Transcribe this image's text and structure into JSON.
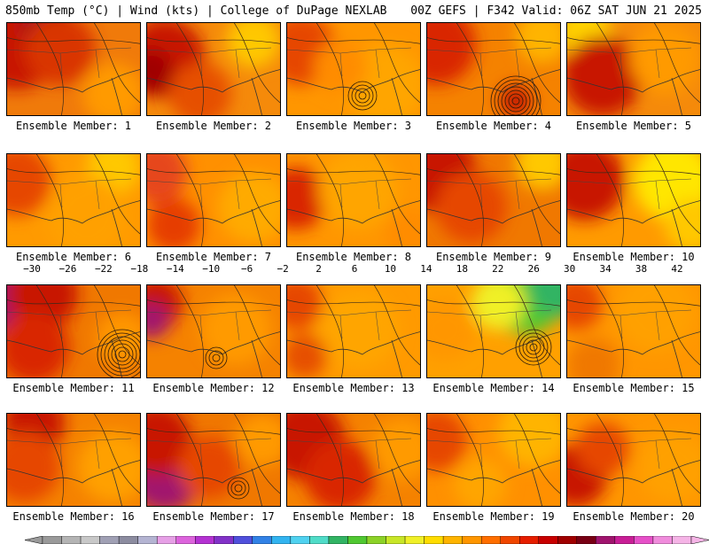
{
  "header": {
    "left": "850mb Temp (°C) | Wind (kts) | College of DuPage NEXLAB",
    "right": "00Z GEFS | F342 Valid: 06Z SAT JUN 21 2025"
  },
  "panels": [
    {
      "label": "Ensemble Member: 1",
      "cyclone": null
    },
    {
      "label": "Ensemble Member: 2",
      "cyclone": null
    },
    {
      "label": "Ensemble Member: 3",
      "cyclone": {
        "rings": 4
      }
    },
    {
      "label": "Ensemble Member: 4",
      "cyclone": {
        "rings": 7
      }
    },
    {
      "label": "Ensemble Member: 5",
      "cyclone": null
    },
    {
      "label": "Ensemble Member: 6",
      "cyclone": null
    },
    {
      "label": "Ensemble Member: 7",
      "cyclone": null
    },
    {
      "label": "Ensemble Member: 8",
      "cyclone": null
    },
    {
      "label": "Ensemble Member: 9",
      "cyclone": null
    },
    {
      "label": "Ensemble Member: 10",
      "cyclone": null
    },
    {
      "label": "Ensemble Member: 11",
      "cyclone": {
        "rings": 7
      }
    },
    {
      "label": "Ensemble Member: 12",
      "cyclone": {
        "rings": 3
      }
    },
    {
      "label": "Ensemble Member: 13",
      "cyclone": null
    },
    {
      "label": "Ensemble Member: 14",
      "cyclone": {
        "rings": 5
      }
    },
    {
      "label": "Ensemble Member: 15",
      "cyclone": null
    },
    {
      "label": "Ensemble Member: 16",
      "cyclone": null
    },
    {
      "label": "Ensemble Member: 17",
      "cyclone": {
        "rings": 3
      }
    },
    {
      "label": "Ensemble Member: 18",
      "cyclone": null
    },
    {
      "label": "Ensemble Member: 19",
      "cyclone": null
    },
    {
      "label": "Ensemble Member: 20",
      "cyclone": null
    }
  ],
  "scale": {
    "ticks": [
      "−30",
      "−26",
      "−22",
      "−18",
      "−14",
      "−10",
      "−6",
      "−2",
      "2",
      "6",
      "10",
      "14",
      "18",
      "22",
      "26",
      "30",
      "34",
      "38",
      "42"
    ],
    "colors": [
      "#9a9a9a",
      "#b4b4b4",
      "#c8c8c8",
      "#a0a0b4",
      "#8c8ca0",
      "#b4b4d2",
      "#e6a0e6",
      "#dc64dc",
      "#b432d2",
      "#8232c8",
      "#5050dc",
      "#3282e6",
      "#32b4f0",
      "#50d2f0",
      "#50dcc8",
      "#32b464",
      "#50c832",
      "#8cd228",
      "#c8e628",
      "#f0f028",
      "#ffdc00",
      "#ffb400",
      "#ff9600",
      "#ff6e00",
      "#f04600",
      "#e61e00",
      "#c80000",
      "#a00000",
      "#780014",
      "#a0146e",
      "#c81e96",
      "#e650c8",
      "#f08cdc",
      "#f5b4e6"
    ]
  }
}
